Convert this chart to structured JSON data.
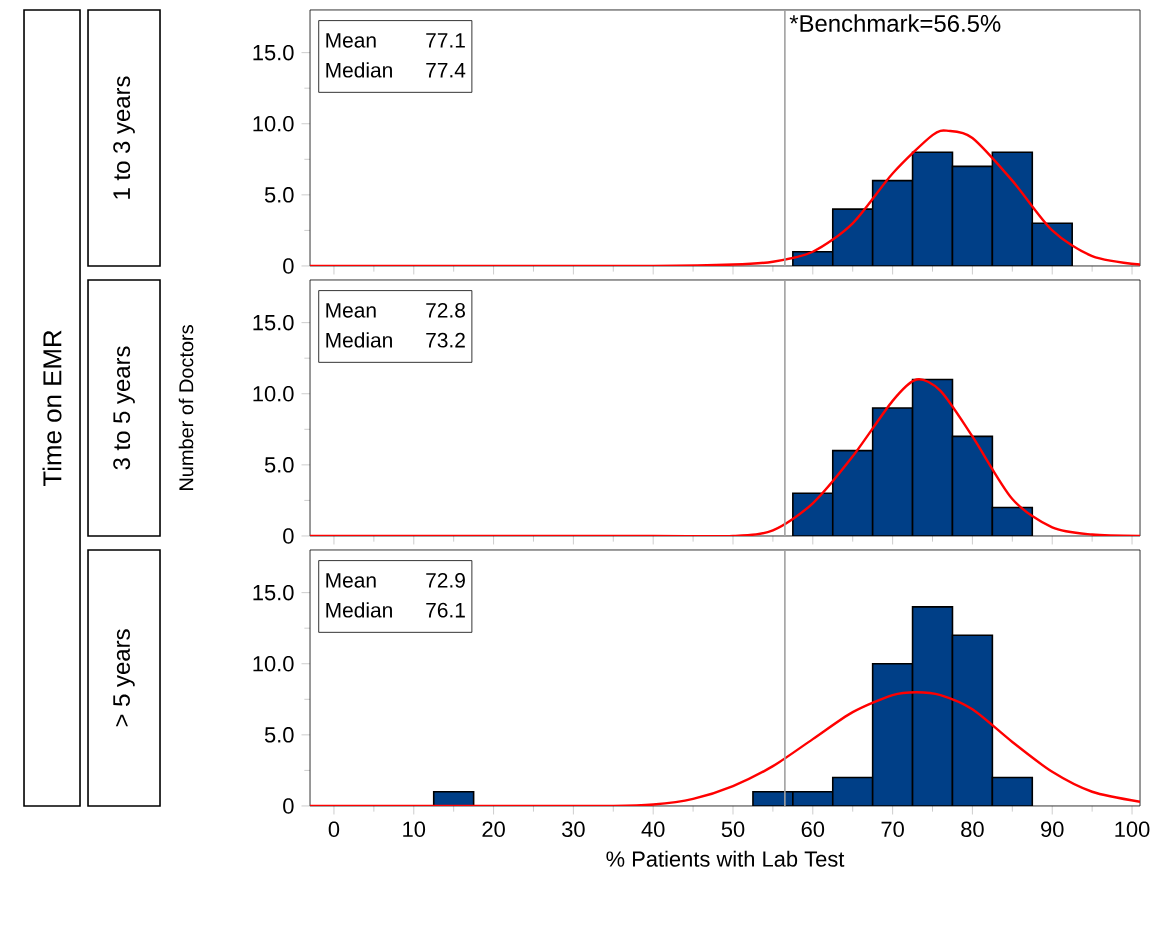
{
  "chart_data": [
    {
      "type": "histogram",
      "title": "1 to 3 years",
      "xlim": [
        -3,
        101
      ],
      "xticks": [
        0,
        10,
        20,
        30,
        40,
        50,
        60,
        70,
        80,
        90,
        100
      ],
      "ylim": [
        0,
        18
      ],
      "yticks": [
        {
          "value": 0,
          "label": "0"
        },
        {
          "value": 5,
          "label": "5.0"
        },
        {
          "value": 10,
          "label": "10.0"
        },
        {
          "value": 15,
          "label": "15.0"
        }
      ],
      "tick_labels": "y",
      "series": [
        {
          "color": "#003f87",
          "bins": [
            57.5,
            62.5,
            67.5,
            72.5,
            77.5,
            82.5,
            87.5,
            92.5
          ],
          "values": [
            1,
            4,
            6,
            8,
            7,
            8,
            3
          ]
        },
        {
          "type": "line",
          "color": "#ff0000",
          "x": [
            -3,
            20,
            40,
            50,
            55,
            60,
            65,
            70,
            75,
            77,
            80,
            85,
            90,
            95,
            101
          ],
          "values": [
            0,
            0,
            0,
            0.1,
            0.3,
            1,
            3,
            6.5,
            9.2,
            9.5,
            9,
            6,
            2.5,
            0.7,
            0.1
          ]
        }
      ],
      "ref_lines": [
        {
          "axis": "x",
          "value": 56.5,
          "label": "*Benchmark=56.5%",
          "color": "#a0a0a0"
        }
      ],
      "annotations": [
        "Mean",
        "77.1",
        "Median",
        "77.4",
        "Time on EMR"
      ]
    },
    {
      "type": "histogram",
      "title": "3 to 5 years",
      "ylabel": "Number of Doctors",
      "xlim": [
        -3,
        101
      ],
      "xticks": [
        0,
        10,
        20,
        30,
        40,
        50,
        60,
        70,
        80,
        90,
        100
      ],
      "ylim": [
        0,
        18
      ],
      "yticks": [
        {
          "value": 0,
          "label": "0"
        },
        {
          "value": 5,
          "label": "5.0"
        },
        {
          "value": 10,
          "label": "10.0"
        },
        {
          "value": 15,
          "label": "15.0"
        }
      ],
      "tick_labels": "y",
      "series": [
        {
          "color": "#003f87",
          "bins": [
            57.5,
            62.5,
            67.5,
            72.5,
            77.5,
            82.5,
            87.5
          ],
          "values": [
            3,
            6,
            9,
            11,
            7,
            2
          ]
        },
        {
          "type": "line",
          "color": "#ff0000",
          "x": [
            -3,
            20,
            40,
            50,
            55,
            60,
            65,
            70,
            73,
            76,
            80,
            85,
            90,
            95,
            101
          ],
          "values": [
            0,
            0,
            0,
            0,
            0.4,
            2.3,
            5.6,
            9.5,
            11,
            10.2,
            7,
            2.6,
            0.6,
            0.1,
            0
          ]
        }
      ],
      "ref_lines": [
        {
          "axis": "x",
          "value": 56.5,
          "color": "#a0a0a0"
        }
      ],
      "annotations": [
        "Mean",
        "72.8",
        "Median",
        "73.2"
      ]
    },
    {
      "type": "histogram",
      "title": "> 5 years",
      "xlabel": "% Patients with Lab Test",
      "xlim": [
        -3,
        101
      ],
      "xticks": [
        0,
        10,
        20,
        30,
        40,
        50,
        60,
        70,
        80,
        90,
        100
      ],
      "ylim": [
        0,
        18
      ],
      "yticks": [
        {
          "value": 0,
          "label": "0"
        },
        {
          "value": 5,
          "label": "5.0"
        },
        {
          "value": 10,
          "label": "10.0"
        },
        {
          "value": 15,
          "label": "15.0"
        }
      ],
      "series": [
        {
          "color": "#003f87",
          "bins": [
            12.5,
            17.5,
            22.5,
            27.5,
            32.5,
            37.5,
            42.5,
            47.5,
            52.5,
            57.5,
            62.5,
            67.5,
            72.5,
            77.5,
            82.5,
            87.5
          ],
          "values": [
            1,
            0,
            0,
            0,
            0,
            0,
            0,
            0,
            1,
            1,
            2,
            10,
            14,
            12,
            2
          ]
        },
        {
          "type": "line",
          "color": "#ff0000",
          "x": [
            -3,
            20,
            35,
            40,
            45,
            50,
            55,
            60,
            65,
            70,
            73,
            76,
            80,
            85,
            90,
            95,
            101
          ],
          "values": [
            0,
            0,
            0,
            0.1,
            0.5,
            1.4,
            2.8,
            4.7,
            6.6,
            7.8,
            8,
            7.8,
            6.8,
            4.5,
            2.4,
            1,
            0.3
          ]
        }
      ],
      "ref_lines": [
        {
          "axis": "x",
          "value": 56.5,
          "color": "#a0a0a0"
        }
      ],
      "annotations": [
        "Mean",
        "72.9",
        "Median",
        "76.1"
      ]
    }
  ]
}
